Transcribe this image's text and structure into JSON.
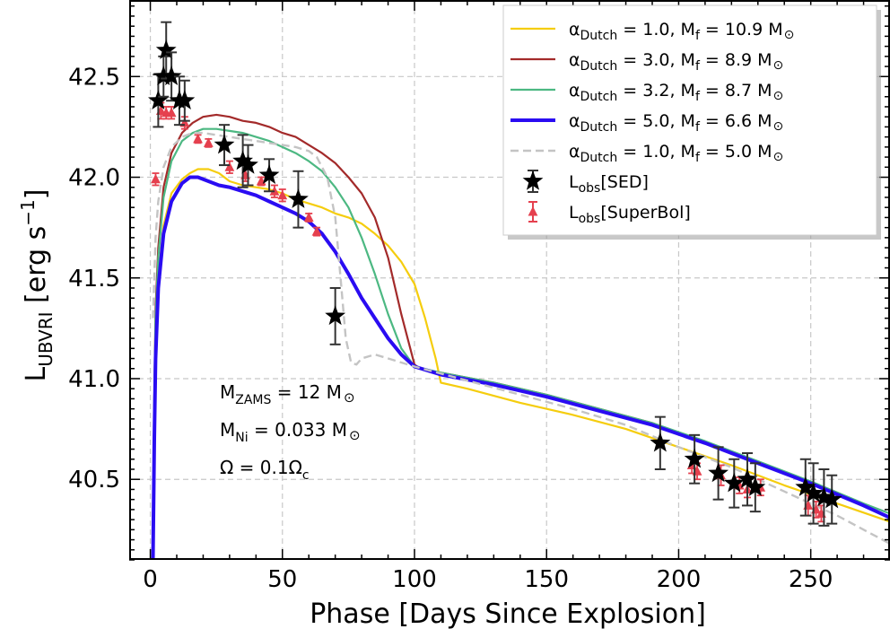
{
  "chart_data": {
    "type": "line",
    "xlabel": "Phase [Days Since Explosion]",
    "ylabel": {
      "main": "L",
      "sub": "UBVRI",
      "rest": " [erg s",
      "sup": "−1",
      "end": "]"
    },
    "xlim": [
      -8,
      280
    ],
    "ylim": [
      40.1,
      42.88
    ],
    "xticks": [
      0,
      50,
      100,
      150,
      200,
      250
    ],
    "yticks": [
      40.5,
      41.0,
      41.5,
      42.0,
      42.5
    ],
    "ytick_labels": [
      "40.5",
      "41.0",
      "41.5",
      "42.0",
      "42.5"
    ],
    "grid": true,
    "legend_position": "upper-right",
    "series": [
      {
        "name": {
          "alpha": "α",
          "alpha_sub": "Dutch",
          "a": "1.0",
          "mf_sub": "f",
          "m": "10.9",
          "msun": "M",
          "sun": "⊙"
        },
        "color": "#f5cd0e",
        "width": 2.2,
        "dash": "",
        "points": [
          [
            1,
            40.1
          ],
          [
            1.5,
            40.8
          ],
          [
            2,
            41.2
          ],
          [
            3,
            41.5
          ],
          [
            5,
            41.76
          ],
          [
            8,
            41.92
          ],
          [
            12,
            41.99
          ],
          [
            15,
            42.02
          ],
          [
            18,
            42.04
          ],
          [
            22,
            42.04
          ],
          [
            26,
            42.02
          ],
          [
            30,
            41.98
          ],
          [
            35,
            41.96
          ],
          [
            40,
            41.95
          ],
          [
            45,
            41.94
          ],
          [
            50,
            41.92
          ],
          [
            55,
            41.89
          ],
          [
            60,
            41.87
          ],
          [
            65,
            41.85
          ],
          [
            70,
            41.82
          ],
          [
            75,
            41.8
          ],
          [
            80,
            41.77
          ],
          [
            85,
            41.72
          ],
          [
            90,
            41.66
          ],
          [
            95,
            41.58
          ],
          [
            100,
            41.47
          ],
          [
            104,
            41.3
          ],
          [
            108,
            41.1
          ],
          [
            110,
            40.98
          ],
          [
            120,
            40.95
          ],
          [
            140,
            40.88
          ],
          [
            160,
            40.82
          ],
          [
            180,
            40.75
          ],
          [
            200,
            40.66
          ],
          [
            220,
            40.57
          ],
          [
            240,
            40.47
          ],
          [
            260,
            40.38
          ],
          [
            280,
            40.29
          ]
        ]
      },
      {
        "name": {
          "alpha": "α",
          "alpha_sub": "Dutch",
          "a": "3.0",
          "mf_sub": "f",
          "m": "8.9",
          "msun": "M",
          "sun": "⊙"
        },
        "color": "#a32a2a",
        "width": 2.2,
        "dash": "",
        "points": [
          [
            1,
            40.1
          ],
          [
            1.5,
            40.9
          ],
          [
            2,
            41.35
          ],
          [
            3,
            41.65
          ],
          [
            5,
            41.95
          ],
          [
            8,
            42.12
          ],
          [
            12,
            42.22
          ],
          [
            16,
            42.27
          ],
          [
            20,
            42.3
          ],
          [
            25,
            42.31
          ],
          [
            30,
            42.3
          ],
          [
            35,
            42.28
          ],
          [
            40,
            42.27
          ],
          [
            45,
            42.25
          ],
          [
            50,
            42.22
          ],
          [
            55,
            42.2
          ],
          [
            60,
            42.16
          ],
          [
            65,
            42.12
          ],
          [
            70,
            42.07
          ],
          [
            75,
            42.0
          ],
          [
            80,
            41.92
          ],
          [
            85,
            41.8
          ],
          [
            90,
            41.6
          ],
          [
            95,
            41.32
          ],
          [
            100,
            41.07
          ],
          [
            102,
            41.05
          ],
          [
            110,
            41.03
          ],
          [
            130,
            40.98
          ],
          [
            150,
            40.92
          ],
          [
            170,
            40.85
          ],
          [
            190,
            40.78
          ],
          [
            210,
            40.68
          ],
          [
            230,
            40.58
          ],
          [
            250,
            40.48
          ],
          [
            270,
            40.37
          ],
          [
            280,
            40.31
          ]
        ]
      },
      {
        "name": {
          "alpha": "α",
          "alpha_sub": "Dutch",
          "a": "3.2",
          "mf_sub": "f",
          "m": "8.7",
          "msun": "M",
          "sun": "⊙"
        },
        "color": "#4cb882",
        "width": 2.2,
        "dash": "",
        "points": [
          [
            1,
            40.1
          ],
          [
            1.5,
            40.9
          ],
          [
            2,
            41.3
          ],
          [
            3,
            41.6
          ],
          [
            5,
            41.9
          ],
          [
            8,
            42.08
          ],
          [
            12,
            42.18
          ],
          [
            16,
            42.22
          ],
          [
            20,
            42.24
          ],
          [
            25,
            42.24
          ],
          [
            30,
            42.23
          ],
          [
            35,
            42.22
          ],
          [
            40,
            42.2
          ],
          [
            45,
            42.18
          ],
          [
            50,
            42.15
          ],
          [
            55,
            42.12
          ],
          [
            60,
            42.08
          ],
          [
            65,
            42.03
          ],
          [
            70,
            41.95
          ],
          [
            75,
            41.85
          ],
          [
            80,
            41.7
          ],
          [
            85,
            41.52
          ],
          [
            90,
            41.32
          ],
          [
            95,
            41.15
          ],
          [
            100,
            41.06
          ],
          [
            110,
            41.03
          ],
          [
            130,
            40.98
          ],
          [
            150,
            40.92
          ],
          [
            170,
            40.85
          ],
          [
            190,
            40.78
          ],
          [
            210,
            40.69
          ],
          [
            230,
            40.59
          ],
          [
            250,
            40.49
          ],
          [
            270,
            40.38
          ],
          [
            280,
            40.33
          ]
        ]
      },
      {
        "name": {
          "alpha": "α",
          "alpha_sub": "Dutch",
          "a": "5.0",
          "mf_sub": "f",
          "m": "6.6",
          "msun": "M",
          "sun": "⊙"
        },
        "color": "#2a0cf2",
        "width": 4,
        "dash": "",
        "points": [
          [
            1,
            40.1
          ],
          [
            1.5,
            40.7
          ],
          [
            2,
            41.1
          ],
          [
            3,
            41.45
          ],
          [
            5,
            41.72
          ],
          [
            8,
            41.88
          ],
          [
            12,
            41.97
          ],
          [
            15,
            42.0
          ],
          [
            18,
            42.0
          ],
          [
            22,
            41.98
          ],
          [
            26,
            41.96
          ],
          [
            30,
            41.95
          ],
          [
            35,
            41.93
          ],
          [
            40,
            41.91
          ],
          [
            45,
            41.88
          ],
          [
            50,
            41.85
          ],
          [
            55,
            41.82
          ],
          [
            60,
            41.78
          ],
          [
            65,
            41.72
          ],
          [
            70,
            41.63
          ],
          [
            75,
            41.52
          ],
          [
            80,
            41.4
          ],
          [
            85,
            41.3
          ],
          [
            90,
            41.2
          ],
          [
            95,
            41.12
          ],
          [
            100,
            41.06
          ],
          [
            110,
            41.02
          ],
          [
            130,
            40.97
          ],
          [
            150,
            40.91
          ],
          [
            170,
            40.84
          ],
          [
            190,
            40.77
          ],
          [
            210,
            40.68
          ],
          [
            230,
            40.58
          ],
          [
            250,
            40.48
          ],
          [
            270,
            40.37
          ],
          [
            280,
            40.31
          ]
        ]
      },
      {
        "name": {
          "alpha": "α",
          "alpha_sub": "Dutch",
          "a": "1.0",
          "mf_sub": "f",
          "m": "5.0",
          "msun": "M",
          "sun": "⊙"
        },
        "color": "#c4c4c4",
        "width": 2.4,
        "dash": "9,5",
        "points": [
          [
            1,
            41.3
          ],
          [
            1.5,
            41.5
          ],
          [
            2,
            41.7
          ],
          [
            3,
            41.88
          ],
          [
            5,
            42.05
          ],
          [
            8,
            42.15
          ],
          [
            12,
            42.2
          ],
          [
            16,
            42.22
          ],
          [
            20,
            42.22
          ],
          [
            25,
            42.21
          ],
          [
            30,
            42.2
          ],
          [
            35,
            42.19
          ],
          [
            40,
            42.18
          ],
          [
            45,
            42.17
          ],
          [
            50,
            42.16
          ],
          [
            55,
            42.15
          ],
          [
            60,
            42.13
          ],
          [
            63,
            42.1
          ],
          [
            67,
            42.0
          ],
          [
            70,
            41.8
          ],
          [
            72,
            41.5
          ],
          [
            74,
            41.2
          ],
          [
            76,
            41.08
          ],
          [
            78,
            41.07
          ],
          [
            80,
            41.1
          ],
          [
            85,
            41.12
          ],
          [
            90,
            41.1
          ],
          [
            100,
            41.06
          ],
          [
            120,
            40.99
          ],
          [
            140,
            40.92
          ],
          [
            160,
            40.85
          ],
          [
            180,
            40.77
          ],
          [
            200,
            40.66
          ],
          [
            220,
            40.56
          ],
          [
            240,
            40.44
          ],
          [
            260,
            40.32
          ],
          [
            280,
            40.18
          ]
        ]
      }
    ],
    "sed_points": [
      [
        3,
        42.38
      ],
      [
        5,
        42.5
      ],
      [
        6,
        42.63
      ],
      [
        8,
        42.5
      ],
      [
        11,
        42.38
      ],
      [
        13,
        42.38
      ],
      [
        28,
        42.16
      ],
      [
        35,
        42.08
      ],
      [
        37,
        42.06
      ],
      [
        45,
        42.01
      ],
      [
        56,
        41.89
      ],
      [
        70,
        41.31
      ],
      [
        193,
        40.68
      ],
      [
        206,
        40.6
      ],
      [
        215,
        40.53
      ],
      [
        221,
        40.48
      ],
      [
        226,
        40.5
      ],
      [
        229,
        40.46
      ],
      [
        248,
        40.46
      ],
      [
        251,
        40.43
      ],
      [
        255,
        40.41
      ],
      [
        258,
        40.4
      ]
    ],
    "sed_errors": [
      0.13,
      0.1,
      0.14,
      0.12,
      0.12,
      0.1,
      0.1,
      0.13,
      0.1,
      0.08,
      0.14,
      0.14,
      0.13,
      0.12,
      0.13,
      0.12,
      0.13,
      0.12,
      0.14,
      0.15,
      0.14,
      0.12
    ],
    "superbol_points": [
      [
        2,
        41.99
      ],
      [
        4,
        42.33
      ],
      [
        6,
        42.32
      ],
      [
        8,
        42.32
      ],
      [
        13,
        42.27
      ],
      [
        18,
        42.19
      ],
      [
        22,
        42.17
      ],
      [
        30,
        42.05
      ],
      [
        36,
        42.01
      ],
      [
        42,
        41.98
      ],
      [
        47,
        41.93
      ],
      [
        50,
        41.91
      ],
      [
        60,
        41.8
      ],
      [
        63,
        41.73
      ],
      [
        205,
        40.57
      ],
      [
        207,
        40.54
      ],
      [
        216,
        40.52
      ],
      [
        223,
        40.47
      ],
      [
        226,
        40.45
      ],
      [
        231,
        40.46
      ],
      [
        249,
        40.37
      ],
      [
        252,
        40.35
      ],
      [
        254,
        40.33
      ]
    ],
    "superbol_errors": [
      0.03,
      0.04,
      0.03,
      0.03,
      0.03,
      0.02,
      0.02,
      0.03,
      0.03,
      0.02,
      0.03,
      0.03,
      0.02,
      0.02,
      0.04,
      0.04,
      0.05,
      0.04,
      0.04,
      0.04,
      0.05,
      0.04,
      0.04
    ],
    "sed_legend": {
      "main": "L",
      "sub": "obs",
      "rest": "[SED]"
    },
    "superbol_legend": {
      "main": "L",
      "sub": "obs",
      "rest": "[SuperBol]"
    },
    "sed_color": "#000000",
    "sed_err_color": "#333333",
    "superbol_color": "#e5404e",
    "annotations": [
      {
        "main": "M",
        "sub": "ZAMS",
        "rest": " = 12 M",
        "sun": "⊙"
      },
      {
        "main": "M",
        "sub": "Ni",
        "rest": " = 0.033 M",
        "sun": "⊙"
      },
      {
        "main": "Ω = 0.1Ω",
        "sub": "c",
        "rest": "",
        "sun": ""
      }
    ]
  }
}
